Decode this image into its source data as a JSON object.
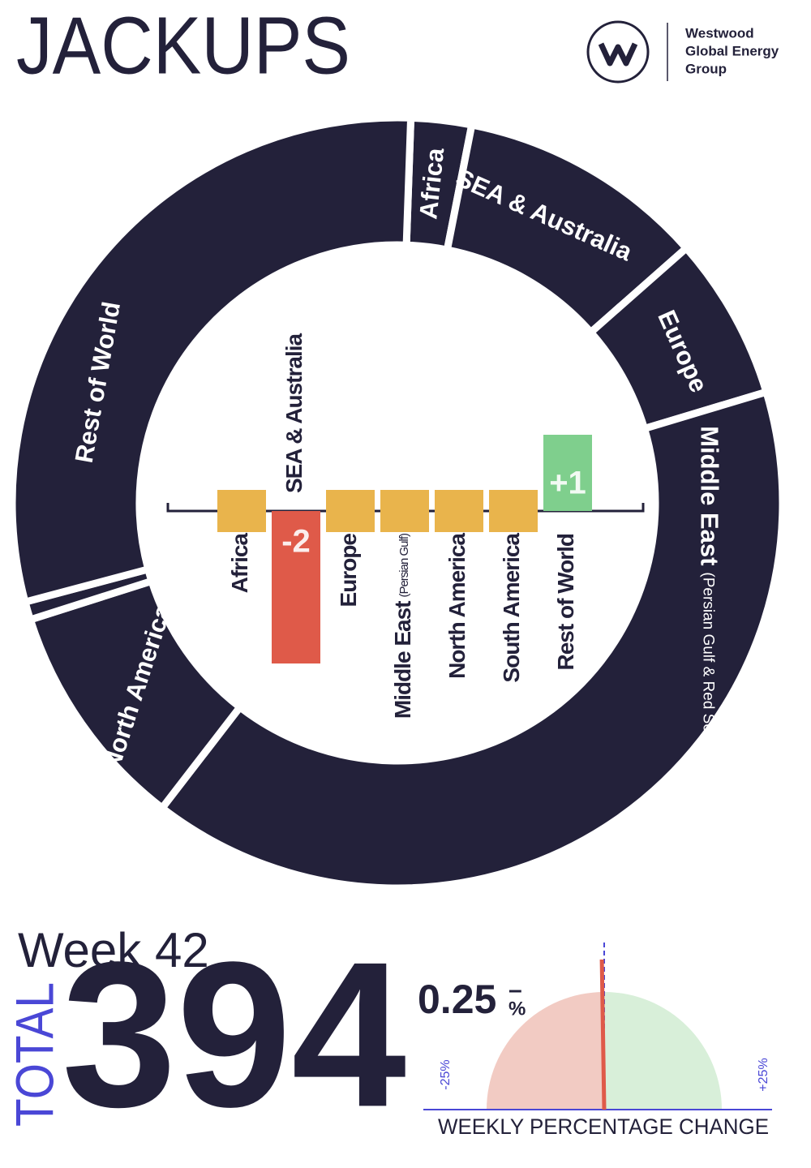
{
  "header": {
    "title": "JACKUPS",
    "logo_text": [
      "Westwood",
      "Global Energy",
      "Group"
    ]
  },
  "chart_data": [
    {
      "type": "donut",
      "categories": [
        "Africa",
        "SEA & Australia",
        "Europe",
        "Middle East",
        "tNorth America",
        null,
        "Rest of World"
      ],
      "category_subtitles": [
        null,
        null,
        null,
        "(Persian Gulf & Red Sea)",
        null,
        null,
        null
      ],
      "values": [
        10,
        41,
        27,
        158,
        38,
        3,
        117
      ],
      "color": "#23213a"
    },
    {
      "type": "bar",
      "categories": [
        "Africa",
        "SEA & Australia",
        "Europe",
        "Middle East",
        "North America",
        "South America",
        "Rest of World"
      ],
      "category_subtitles": [
        null,
        null,
        null,
        "(Persian Gulf)",
        null,
        null,
        null
      ],
      "values": [
        0,
        -2,
        0,
        0,
        0,
        0,
        1
      ],
      "value_labels": [
        null,
        "-2",
        null,
        null,
        null,
        null,
        "+1"
      ],
      "colors": [
        "#e9b44c",
        "#df5a49",
        "#e9b44c",
        "#e9b44c",
        "#e9b44c",
        "#e9b44c",
        "#7fcf8d"
      ]
    },
    {
      "type": "gauge",
      "title": "WEEKLY PERCENTAGE CHANGE",
      "value": -0.25,
      "value_label": "0.25",
      "sign_label": "–",
      "unit_label": "%",
      "xlim": [
        -25,
        25
      ],
      "xticks": [
        {
          "value": -25,
          "label": "-25%"
        },
        {
          "value": 25,
          "label": "+25%"
        }
      ],
      "colors": {
        "negative": "#f2cbc3",
        "positive": "#d8efd9",
        "needle": "#df5a49",
        "axis": "#4a47d6"
      }
    }
  ],
  "summary": {
    "period": "Week 42",
    "total_label": "TOTAL",
    "total": 394
  }
}
